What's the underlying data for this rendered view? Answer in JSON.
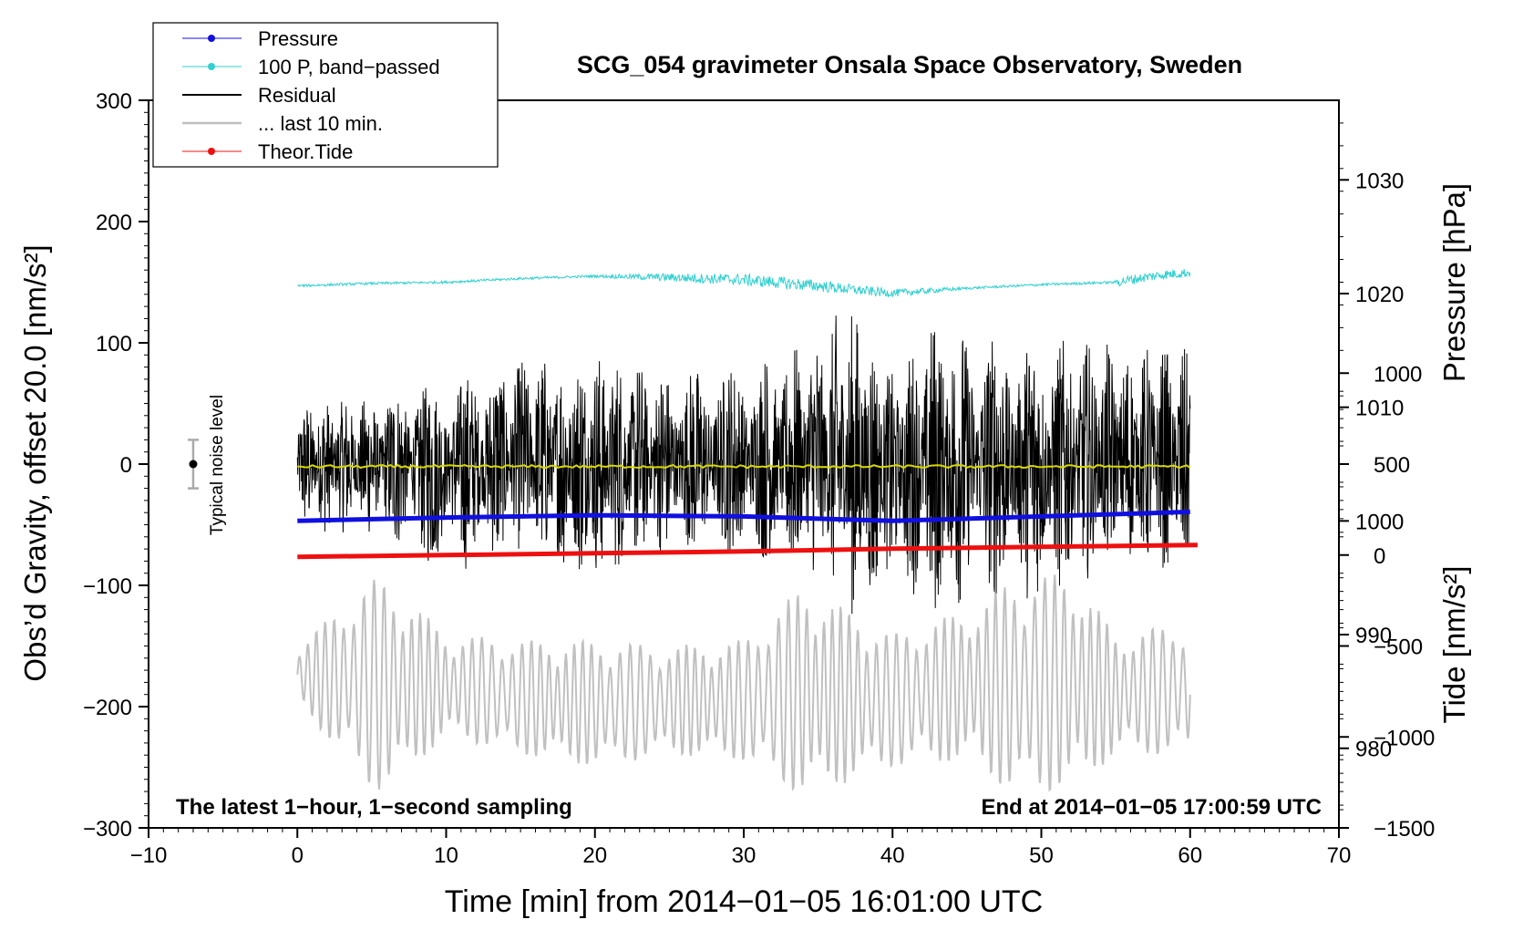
{
  "chart_data": {
    "type": "line",
    "title": "SCG_054 gravimeter Onsala Space Observatory, Sweden",
    "xlabel": "Time [min] from 2014−01−05 16:01:00 UTC",
    "ylabel_left": "Obs’d Gravity, offset 20.0 [nm/s²]",
    "ylabel_right_top": "Pressure [hPa]",
    "ylabel_right_bottom": "Tide [nm/s²]",
    "xlim": [
      -10,
      70
    ],
    "ylim": [
      -300,
      300
    ],
    "pressure_axis_range": [
      973,
      1037
    ],
    "tide_axis_range": [
      -1500,
      2500
    ],
    "x_ticks": [
      {
        "value": -10,
        "label": "−10"
      },
      {
        "value": 0,
        "label": "0"
      },
      {
        "value": 10,
        "label": "10"
      },
      {
        "value": 20,
        "label": "20"
      },
      {
        "value": 30,
        "label": "30"
      },
      {
        "value": 40,
        "label": "40"
      },
      {
        "value": 50,
        "label": "50"
      },
      {
        "value": 60,
        "label": "60"
      },
      {
        "value": 70,
        "label": "70"
      }
    ],
    "y_ticks": [
      {
        "value": 300,
        "label": "300"
      },
      {
        "value": 200,
        "label": "200"
      },
      {
        "value": 100,
        "label": "100"
      },
      {
        "value": 0,
        "label": "0"
      },
      {
        "value": -100,
        "label": "−100"
      },
      {
        "value": -200,
        "label": "−200"
      },
      {
        "value": -300,
        "label": "−300"
      }
    ],
    "pressure_ticks": [
      {
        "value": 1030,
        "label": "1030"
      },
      {
        "value": 1020,
        "label": "1020"
      },
      {
        "value": 1010,
        "label": "1010"
      },
      {
        "value": 1000,
        "label": "1000"
      },
      {
        "value": 990,
        "label": "990"
      },
      {
        "value": 980,
        "label": "980"
      }
    ],
    "tide_ticks": [
      {
        "value": 1000,
        "label": "1000"
      },
      {
        "value": 500,
        "label": "500"
      },
      {
        "value": 0,
        "label": "0"
      },
      {
        "value": -500,
        "label": "−500"
      },
      {
        "value": -1000,
        "label": "−1000"
      },
      {
        "value": -1500,
        "label": "−1500"
      }
    ],
    "legend_position": "top-left",
    "series": [
      {
        "name": "Pressure",
        "color": "#1010e0",
        "axis": "pressure",
        "x": [
          0,
          10,
          20,
          30,
          40,
          50,
          60
        ],
        "values": [
          1000.0,
          1000.3,
          1000.5,
          1000.4,
          1000.0,
          1000.4,
          1000.8
        ]
      },
      {
        "name": "100 P, band−passed",
        "color": "#30d0d0",
        "axis": "left",
        "x": [
          0,
          5,
          10,
          15,
          20,
          25,
          30,
          35,
          38,
          40,
          45,
          50,
          55,
          58,
          60
        ],
        "values": [
          147,
          149,
          150,
          153,
          155,
          154,
          152,
          147,
          143,
          141,
          145,
          148,
          150,
          156,
          158
        ]
      },
      {
        "name": "Residual",
        "color": "#000000",
        "axis": "left",
        "x": [
          0,
          5,
          10,
          15,
          20,
          25,
          30,
          35,
          37.5,
          40,
          43.7,
          45,
          50,
          55,
          60
        ],
        "envelope_min": [
          -57,
          -60,
          -92,
          -75,
          -97,
          -75,
          -75,
          -95,
          -135,
          -100,
          -138,
          -105,
          -120,
          -80,
          -94
        ],
        "envelope_max": [
          52,
          60,
          70,
          90,
          95,
          80,
          85,
          112,
          137,
          75,
          137,
          110,
          105,
          100,
          98
        ]
      },
      {
        "name": "... last 10 min.",
        "color": "#c0c0c0",
        "axis": "left",
        "x": [
          0,
          5,
          6,
          10,
          15,
          20,
          25,
          30,
          34,
          40,
          45,
          48,
          52,
          55,
          60
        ],
        "envelope_min": [
          -197,
          -269,
          -270,
          -225,
          -240,
          -250,
          -240,
          -245,
          -275,
          -250,
          -245,
          -272,
          -270,
          -240,
          -240
        ],
        "envelope_max": [
          -150,
          -95,
          -95,
          -140,
          -145,
          -145,
          -150,
          -145,
          -100,
          -140,
          -120,
          -95,
          -88,
          -140,
          -130
        ]
      },
      {
        "name": "Theor.Tide",
        "color": "#ee1010",
        "axis": "tide",
        "x": [
          0,
          10,
          20,
          30,
          40,
          50,
          60.5
        ],
        "values": [
          -10,
          0,
          10,
          20,
          35,
          45,
          55
        ]
      }
    ],
    "noise_level": {
      "label": "Typical noise level",
      "x": -7,
      "center": 0,
      "half_range": 20
    },
    "annotations": [
      {
        "text": "The latest 1−hour, 1−second sampling",
        "position": "bottom-left"
      },
      {
        "text": "End at 2014−01−05 17:00:59 UTC",
        "position": "bottom-right"
      }
    ],
    "grid": false
  }
}
